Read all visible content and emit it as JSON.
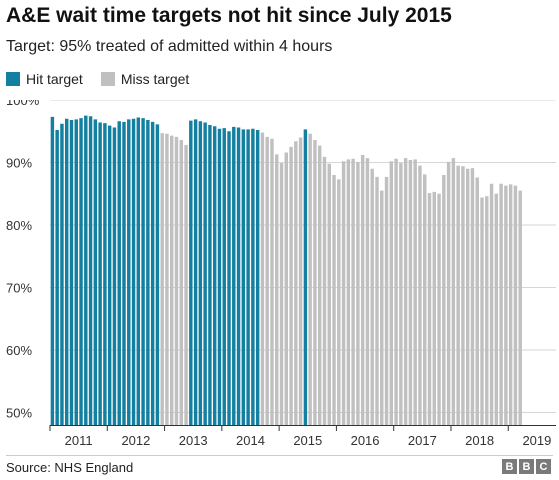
{
  "header": {
    "title": "A&E wait time targets not hit since July 2015",
    "subtitle": "Target: 95% treated of admitted within 4 hours"
  },
  "legend": {
    "hit_label": "Hit target",
    "miss_label": "Miss target"
  },
  "footer": {
    "source": "Source: NHS England",
    "logo_letters": [
      "B",
      "B",
      "C"
    ]
  },
  "colors": {
    "hit": "#1380a1",
    "miss": "#c0c0c0",
    "grid": "#d6d6d6",
    "axis": "#333333"
  },
  "chart_data": {
    "type": "bar",
    "target": 95,
    "ylim": [
      48,
      100
    ],
    "yticks": [
      50,
      60,
      70,
      80,
      90,
      100
    ],
    "ytick_labels": [
      "50%",
      "60%",
      "70%",
      "80%",
      "90%",
      "100%"
    ],
    "xtick_labels": [
      "2011",
      "2012",
      "2013",
      "2014",
      "2015",
      "2016",
      "2017",
      "2018",
      "2019"
    ],
    "start_month": "2011-01",
    "series": [
      {
        "name": "Hit target",
        "values": [
          97.3,
          95.2,
          96.2,
          97.0,
          96.8,
          96.9,
          97.1,
          97.5,
          97.4,
          96.9,
          96.4,
          96.3,
          95.9,
          95.6,
          96.6,
          96.5,
          96.9,
          97.0,
          97.2,
          97.1,
          96.8,
          96.5,
          96.1,
          null,
          null,
          null,
          null,
          null,
          null,
          96.7,
          96.9,
          96.6,
          96.4,
          96.0,
          95.8,
          95.4,
          95.5,
          95.0,
          95.7,
          95.6,
          95.3,
          95.3,
          95.4,
          95.2,
          null,
          null,
          null,
          null,
          null,
          null,
          null,
          null,
          null,
          95.3,
          null,
          null,
          null,
          null,
          null,
          null,
          null,
          null,
          null,
          null,
          null,
          null,
          null,
          null,
          null,
          null,
          null,
          null,
          null,
          null,
          null,
          null,
          null,
          null,
          null,
          null,
          null,
          null,
          null,
          null,
          null,
          null,
          null,
          null,
          null,
          null,
          null,
          null,
          null,
          null,
          null,
          null,
          null,
          null,
          null,
          null,
          null,
          null,
          null,
          null,
          null,
          null
        ]
      },
      {
        "name": "Miss target",
        "values": [
          null,
          null,
          null,
          null,
          null,
          null,
          null,
          null,
          null,
          null,
          null,
          null,
          null,
          null,
          null,
          null,
          null,
          null,
          null,
          null,
          null,
          null,
          null,
          94.7,
          94.6,
          94.3,
          94.1,
          93.6,
          92.8,
          null,
          null,
          null,
          null,
          null,
          null,
          null,
          null,
          null,
          null,
          null,
          null,
          null,
          null,
          null,
          94.8,
          94.1,
          93.8,
          91.3,
          89.9,
          91.6,
          92.5,
          93.4,
          94.0,
          null,
          94.6,
          93.6,
          92.7,
          90.9,
          89.8,
          88.0,
          87.3,
          90.2,
          90.5,
          90.6,
          90.1,
          91.2,
          90.7,
          89.0,
          87.7,
          85.5,
          87.7,
          90.2,
          90.6,
          89.9,
          90.7,
          90.4,
          90.5,
          89.5,
          88.1,
          85.1,
          85.3,
          85.0,
          88.0,
          90.1,
          90.7,
          89.5,
          89.4,
          89.0,
          89.1,
          87.6,
          84.4,
          84.6,
          86.6,
          85.0,
          86.6,
          86.3,
          86.5,
          86.3,
          85.5
        ]
      }
    ]
  }
}
